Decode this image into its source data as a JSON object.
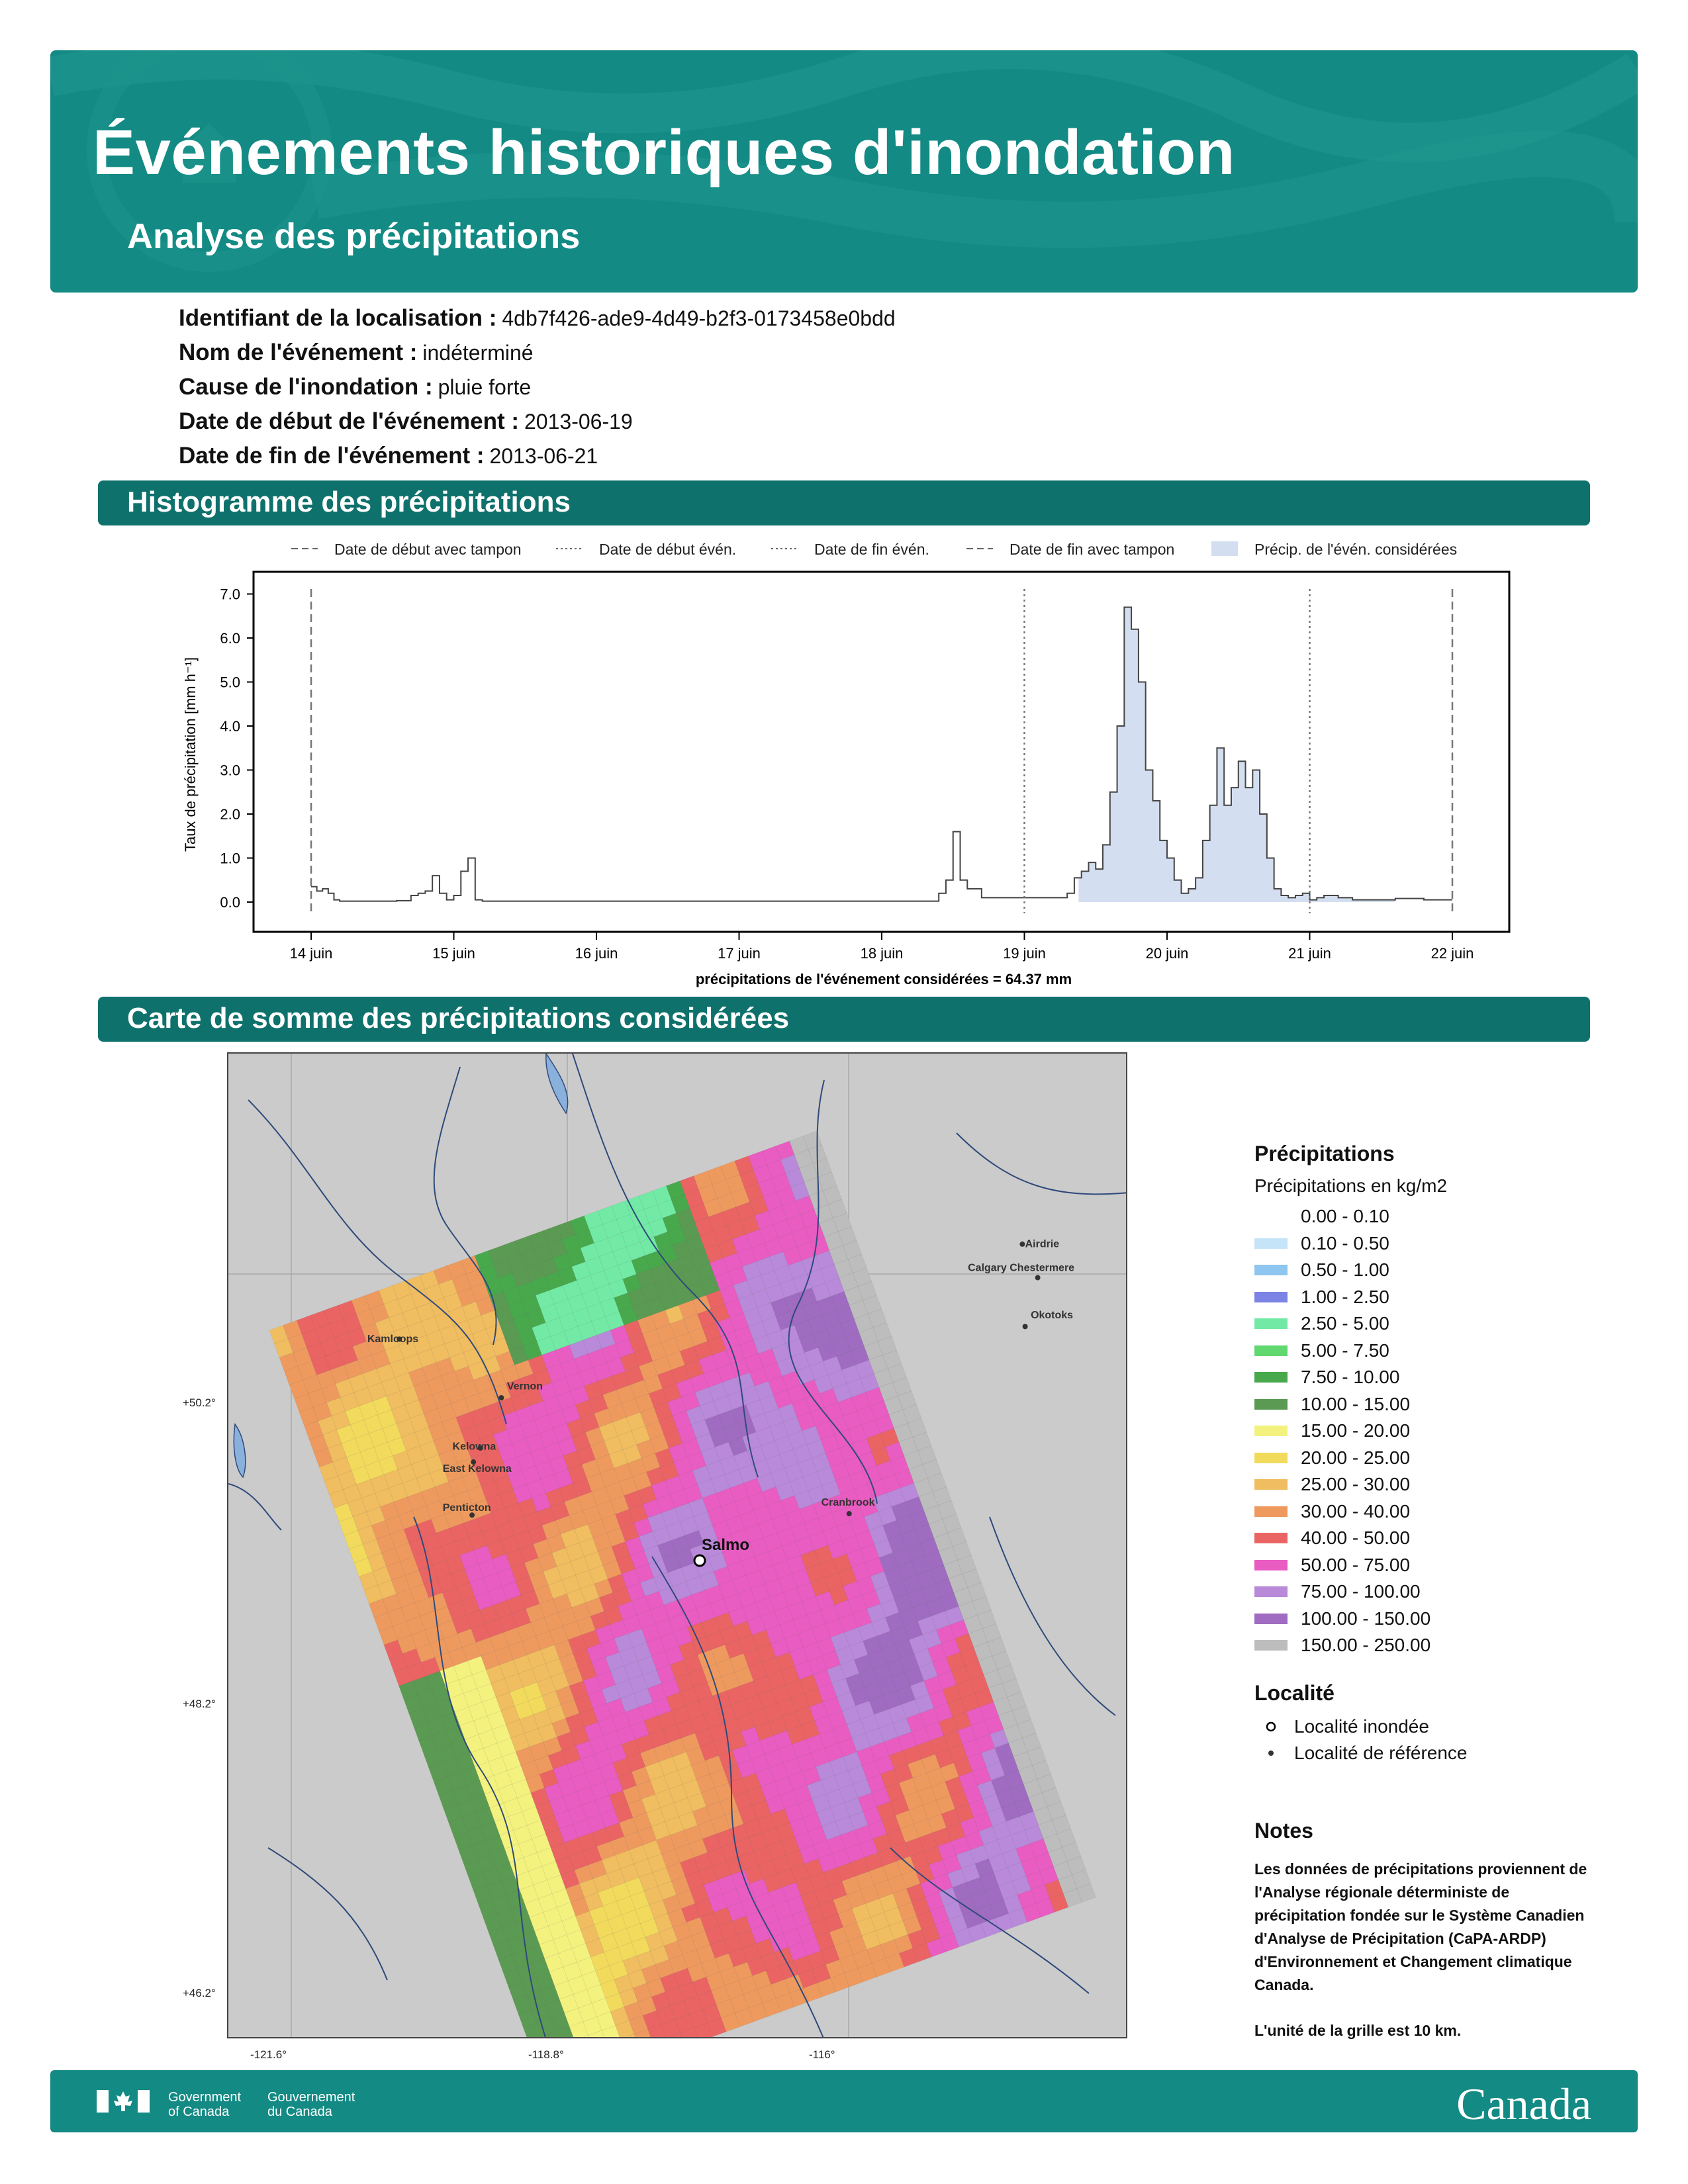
{
  "header": {
    "title": "Événements historiques d'inondation",
    "subtitle": "Analyse des précipitations"
  },
  "meta": {
    "id_label": "Identifiant de la localisation :",
    "id_value": "4db7f426-ade9-4d49-b2f3-0173458e0bdd",
    "name_label": "Nom de l'événement :",
    "name_value": "indéterminé",
    "cause_label": "Cause de l'inondation :",
    "cause_value": "pluie forte",
    "start_label": "Date de début de l'événement :",
    "start_value": "2013-06-19",
    "end_label": "Date de fin de l'événement :",
    "end_value": "2013-06-21"
  },
  "sections": {
    "histogram": "Histogramme des précipitations",
    "map": "Carte de somme des précipitations considérées"
  },
  "chart_data": {
    "type": "line",
    "ylabel": "Taux de précipitation [mm h⁻¹]",
    "xlabel": "précipitations de l'événement considérées = 64.37 mm",
    "ylim": [
      0,
      7.0
    ],
    "yticks": [
      "0.0",
      "1.0",
      "2.0",
      "3.0",
      "4.0",
      "5.0",
      "6.0",
      "7.0"
    ],
    "xticks": [
      "14 juin",
      "15 juin",
      "16 juin",
      "17 juin",
      "18 juin",
      "19 juin",
      "20 juin",
      "21 juin",
      "22 juin"
    ],
    "xlim": [
      0,
      8.05
    ],
    "legend": [
      {
        "label": "Date de début avec tampon",
        "style": "dashed"
      },
      {
        "label": "Date de début évén.",
        "style": "dotted"
      },
      {
        "label": "Date de fin évén.",
        "style": "dotted"
      },
      {
        "label": "Date de fin avec tampon",
        "style": "dashed"
      },
      {
        "label": "Précip. de l'évén. considérées",
        "style": "fill"
      }
    ],
    "vlines": [
      {
        "x": 0.0,
        "style": "dashed"
      },
      {
        "x": 5.0,
        "style": "dotted"
      },
      {
        "x": 7.0,
        "style": "dotted"
      },
      {
        "x": 8.0,
        "style": "dashed"
      }
    ],
    "shade_range": [
      5.38,
      7.6
    ],
    "series": [
      {
        "x": [
          0.0,
          0.04,
          0.08,
          0.12,
          0.16,
          0.2,
          0.4,
          0.6,
          0.7,
          0.75,
          0.8,
          0.85,
          0.9,
          0.95,
          1.0,
          1.05,
          1.1,
          1.15,
          1.2,
          1.25,
          1.3,
          2.0,
          3.0,
          4.0,
          4.4,
          4.45,
          4.5,
          4.55,
          4.6,
          4.7,
          5.0,
          5.3,
          5.35,
          5.4,
          5.45,
          5.5,
          5.55,
          5.6,
          5.65,
          5.7,
          5.75,
          5.8,
          5.85,
          5.9,
          5.95,
          6.0,
          6.05,
          6.1,
          6.15,
          6.2,
          6.25,
          6.3,
          6.35,
          6.4,
          6.45,
          6.5,
          6.55,
          6.6,
          6.65,
          6.7,
          6.75,
          6.8,
          6.85,
          6.9,
          6.95,
          7.0,
          7.05,
          7.1,
          7.2,
          7.3,
          7.5,
          7.6,
          7.8,
          8.0
        ],
        "y": [
          0.35,
          0.25,
          0.3,
          0.2,
          0.05,
          0.02,
          0.02,
          0.03,
          0.15,
          0.2,
          0.25,
          0.6,
          0.2,
          0.05,
          0.15,
          0.7,
          1.0,
          0.05,
          0.02,
          0.02,
          0.02,
          0.02,
          0.02,
          0.02,
          0.2,
          0.5,
          1.6,
          0.5,
          0.3,
          0.1,
          0.1,
          0.2,
          0.55,
          0.7,
          0.9,
          0.75,
          1.3,
          2.5,
          4.0,
          6.7,
          6.2,
          5.0,
          3.0,
          2.3,
          1.4,
          1.0,
          0.5,
          0.2,
          0.3,
          0.55,
          1.4,
          2.2,
          3.5,
          2.2,
          2.6,
          3.2,
          2.6,
          3.0,
          2.0,
          1.0,
          0.3,
          0.15,
          0.1,
          0.15,
          0.2,
          0.05,
          0.1,
          0.15,
          0.1,
          0.05,
          0.05,
          0.08,
          0.05,
          0.05
        ]
      }
    ]
  },
  "legend": {
    "title": "Précipitations",
    "subtitle": "Précipitations en kg/m2",
    "items": [
      {
        "label": "0.00 - 0.10",
        "color": "#ffffff"
      },
      {
        "label": "0.10 - 0.50",
        "color": "#c6e4f7"
      },
      {
        "label": "0.50 - 1.00",
        "color": "#8ec6ef"
      },
      {
        "label": "1.00 - 2.50",
        "color": "#7b84e4"
      },
      {
        "label": "2.50 - 5.00",
        "color": "#72eaa6"
      },
      {
        "label": "5.00 - 7.50",
        "color": "#60d76f"
      },
      {
        "label": "7.50 - 10.00",
        "color": "#48a84c"
      },
      {
        "label": "10.00 - 15.00",
        "color": "#5b9a52"
      },
      {
        "label": "15.00 - 20.00",
        "color": "#f4f27e"
      },
      {
        "label": "20.00 - 25.00",
        "color": "#f2da5c"
      },
      {
        "label": "25.00 - 30.00",
        "color": "#f0bd60"
      },
      {
        "label": "30.00 - 40.00",
        "color": "#ee9a5f"
      },
      {
        "label": "40.00 - 50.00",
        "color": "#ea6464"
      },
      {
        "label": "50.00 - 75.00",
        "color": "#e95cc2"
      },
      {
        "label": "75.00 - 100.00",
        "color": "#b88ad9"
      },
      {
        "label": "100.00 - 150.00",
        "color": "#9f6cc1"
      },
      {
        "label": "150.00 - 250.00",
        "color": "#bdbdbd"
      }
    ]
  },
  "localite": {
    "title": "Localité",
    "flooded": "Localité inondée",
    "reference": "Localité de référence"
  },
  "notes": {
    "title": "Notes",
    "p1": "Les données de précipitations proviennent de l'Analyse régionale déterministe de précipitation fondée sur le Système Canadien d'Analyse de Précipitation (CaPA-ARDP) d'Environnement et Changement climatique Canada.",
    "p2": "L'unité de la grille est 10 km."
  },
  "map": {
    "flooded_city": "Salmo",
    "cities": [
      "Kamloops",
      "Vernon",
      "Kelowna",
      "East Kelowna",
      "Penticton",
      "Cranbrook",
      "Airdrie",
      "Calgary Chestermere",
      "Okotoks"
    ],
    "lat_labels": [
      "+50.2°",
      "+48.2°",
      "+46.2°"
    ],
    "lon_labels": [
      "-121.6°",
      "-118.8°",
      "-116°"
    ]
  },
  "footer": {
    "gov_en_1": "Government",
    "gov_en_2": "of Canada",
    "gov_fr_1": "Gouvernement",
    "gov_fr_2": "du Canada",
    "wordmark": "Canada"
  }
}
